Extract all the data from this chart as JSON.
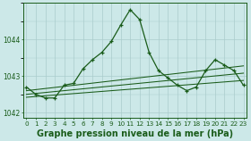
{
  "title": "Graphe pression niveau de la mer (hPa)",
  "bg_color": "#cce8e8",
  "grid_color": "#aacccc",
  "line_color": "#1a5c1a",
  "hours": [
    0,
    1,
    2,
    3,
    4,
    5,
    6,
    7,
    8,
    9,
    10,
    11,
    12,
    13,
    14,
    15,
    16,
    17,
    18,
    19,
    20,
    21,
    22,
    23
  ],
  "x_labels": [
    "0",
    "1",
    "2",
    "3",
    "4",
    "5",
    "6",
    "7",
    "8",
    "9",
    "10",
    "11",
    "12",
    "13",
    "14",
    "15",
    "16",
    "17",
    "18",
    "19",
    "20",
    "21",
    "22",
    "23"
  ],
  "pressure": [
    1042.7,
    1042.5,
    1042.4,
    1042.4,
    1042.75,
    1042.8,
    1043.2,
    1043.45,
    1043.65,
    1043.95,
    1044.4,
    1044.82,
    1044.55,
    1043.65,
    1043.15,
    1042.95,
    1042.75,
    1042.6,
    1042.7,
    1043.15,
    1043.45,
    1043.3,
    1043.15,
    1042.75
  ],
  "trend_lines": [
    {
      "x0": 0,
      "y0": 1042.42,
      "x1": 23,
      "y1": 1042.88
    },
    {
      "x0": 0,
      "y0": 1042.5,
      "x1": 23,
      "y1": 1043.08
    },
    {
      "x0": 0,
      "y0": 1042.6,
      "x1": 23,
      "y1": 1043.28
    }
  ],
  "ylim": [
    1041.85,
    1045.0
  ],
  "yticks": [
    1042,
    1043,
    1044
  ],
  "xlim": [
    -0.3,
    23.3
  ],
  "title_fontsize": 7.0,
  "tick_fontsize": 5.2,
  "linewidth": 0.9,
  "markersize": 3.5
}
